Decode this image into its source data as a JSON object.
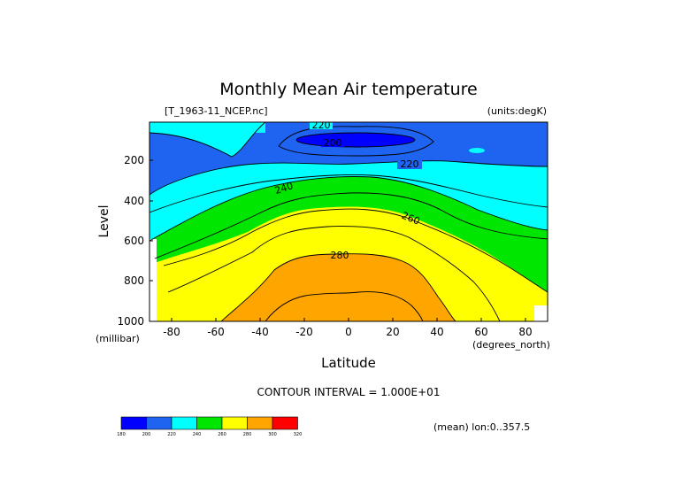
{
  "chart_data": {
    "type": "heatmap",
    "title": "Monthly Mean Air temperature",
    "file_label": "[T_1963-11_NCEP.nc]",
    "units_label": "(units:degK)",
    "xlabel": "Latitude",
    "ylabel": "Level",
    "x_units": "(degrees_north)",
    "y_units": "(millibar)",
    "xlim": [
      -90,
      90
    ],
    "ylim": [
      1000,
      10
    ],
    "x_ticks": [
      -80,
      -60,
      -40,
      -20,
      0,
      20,
      40,
      60,
      80
    ],
    "y_ticks": [
      1000,
      800,
      600,
      400,
      200
    ],
    "contour_interval": "CONTOUR INTERVAL = 1.000E+01",
    "contour_labels": [
      "220",
      "200",
      "220",
      "240",
      "260",
      "280"
    ],
    "colorbar": {
      "levels": [
        "180",
        "200",
        "220",
        "240",
        "260",
        "280",
        "300",
        "320"
      ],
      "colors": [
        "#0000ff",
        "#1e64f0",
        "#00ffff",
        "#00e600",
        "#ffff00",
        "#ffa500",
        "#ff0000"
      ]
    },
    "footer_note": "(mean) lon:0..357.5"
  }
}
